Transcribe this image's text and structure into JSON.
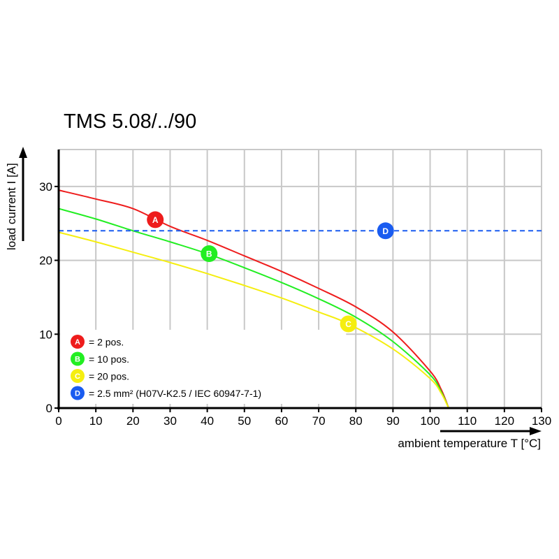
{
  "chart_data": {
    "type": "line",
    "title": "TMS 5.08/../90",
    "xlabel": "ambient temperature T [°C]",
    "ylabel": "load current I [A]",
    "xlim": [
      0,
      130
    ],
    "ylim": [
      0,
      35
    ],
    "xticks": [
      0,
      10,
      20,
      30,
      40,
      50,
      60,
      70,
      80,
      90,
      100,
      110,
      120,
      130
    ],
    "yticks": [
      0,
      10,
      20,
      30
    ],
    "grid": true,
    "legend_position": "bottom-left",
    "series": [
      {
        "marker": "A",
        "name": "= 2 pos.",
        "color": "#ee1c1c",
        "label_at": [
          26,
          25.5
        ],
        "x": [
          0,
          10,
          20,
          30,
          40,
          50,
          60,
          70,
          80,
          90,
          100,
          103,
          105
        ],
        "y": [
          29.5,
          28.3,
          27,
          24.6,
          22.7,
          20.6,
          18.5,
          16.2,
          13.7,
          10.3,
          5,
          2.5,
          0
        ]
      },
      {
        "marker": "B",
        "name": "= 10 pos.",
        "color": "#22ee22",
        "label_at": [
          40.5,
          20.9
        ],
        "x": [
          0,
          10,
          20,
          30,
          40,
          50,
          60,
          70,
          80,
          90,
          100,
          103,
          105
        ],
        "y": [
          27,
          25.6,
          24,
          22.5,
          20.9,
          19,
          17,
          14.8,
          12.3,
          9,
          4.5,
          2.2,
          0
        ]
      },
      {
        "marker": "C",
        "name": "= 20 pos.",
        "color": "#f5ee10",
        "label_at": [
          78,
          11.4
        ],
        "x": [
          0,
          10,
          20,
          30,
          40,
          50,
          60,
          70,
          78,
          90,
          100,
          103,
          105
        ],
        "y": [
          23.8,
          22.5,
          21.1,
          19.7,
          18.2,
          16.6,
          14.9,
          13,
          11.4,
          8,
          4,
          2,
          0
        ]
      },
      {
        "marker": "D",
        "name": "= 2.5 mm² (H07V-K2.5 / IEC 60947-7-1)",
        "color": "#1a5cf0",
        "style": "dashed",
        "label_at": [
          88,
          24
        ],
        "x": [
          0,
          130
        ],
        "y": [
          24,
          24
        ]
      }
    ]
  }
}
